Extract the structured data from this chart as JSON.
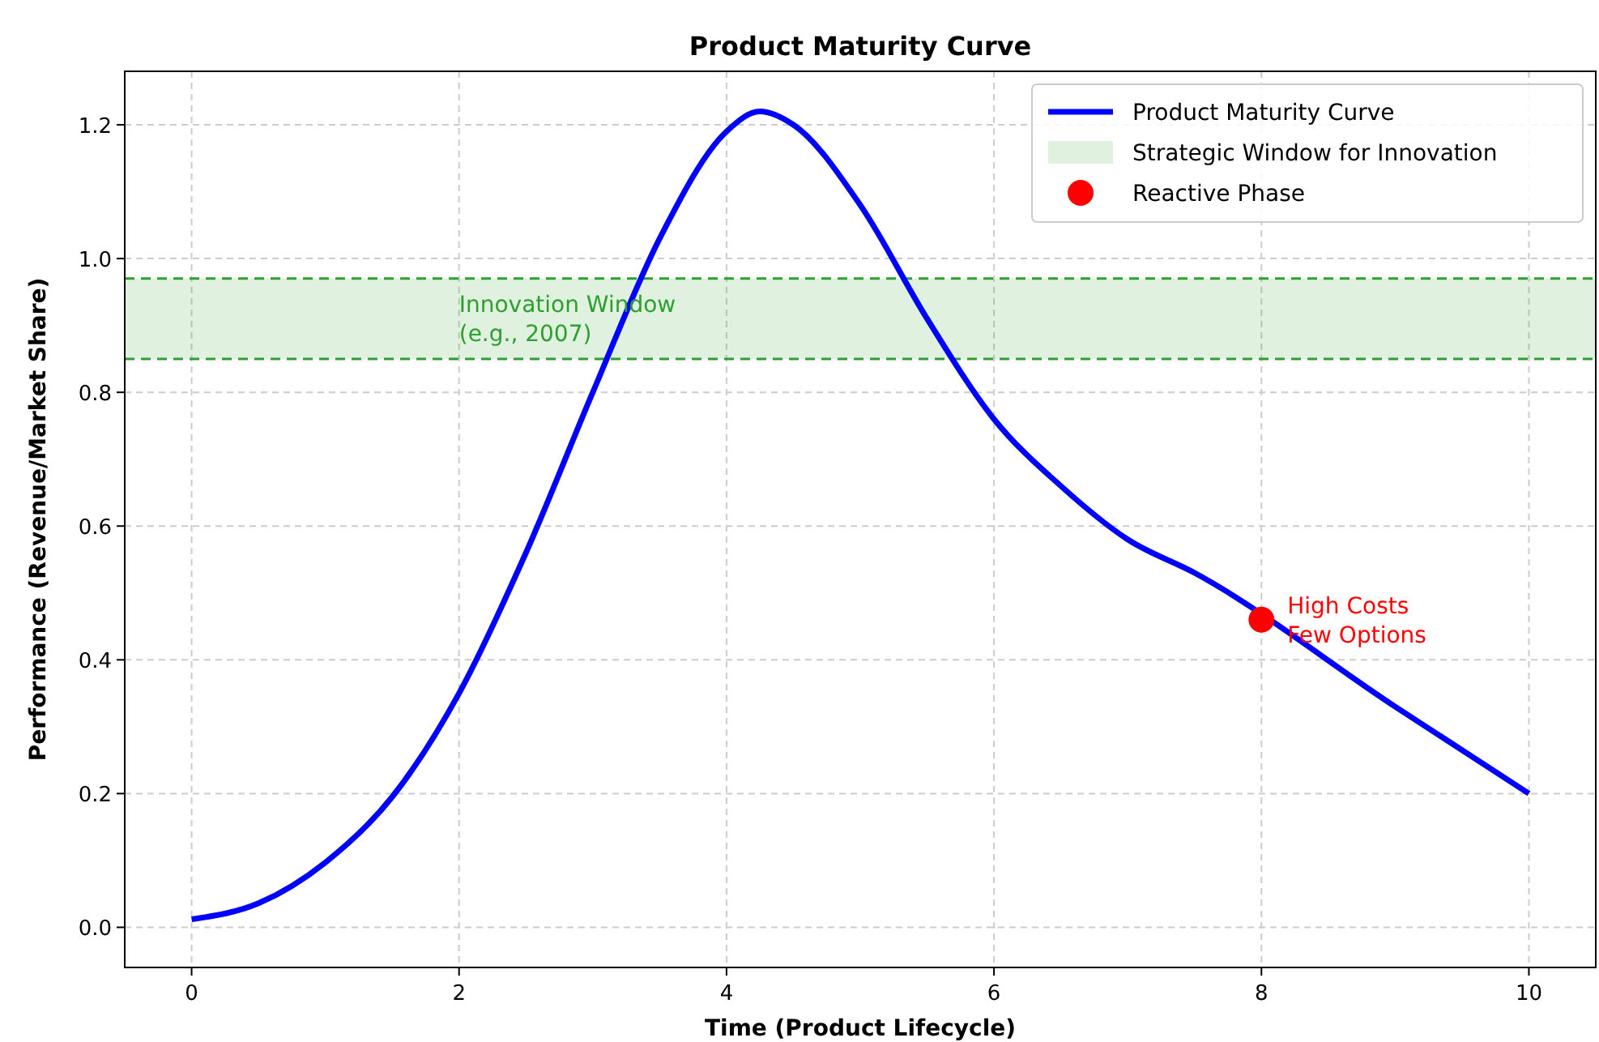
{
  "chart_data": {
    "type": "line",
    "title": "Product Maturity Curve",
    "xlabel": "Time (Product Lifecycle)",
    "ylabel": "Performance (Revenue/Market Share)",
    "xlim": [
      -0.5,
      10.5
    ],
    "ylim": [
      -0.06,
      1.28
    ],
    "xticks": [
      0,
      2,
      4,
      6,
      8,
      10
    ],
    "yticks": [
      {
        "value": 0,
        "label": "0.0"
      },
      0.2,
      0.4,
      0.6,
      0.8,
      {
        "value": 1,
        "label": "1.0"
      },
      1.2
    ],
    "series": [
      {
        "name": "Product Maturity Curve",
        "color": "#0000ff",
        "x": [
          0,
          0.5,
          1,
          1.5,
          2,
          2.5,
          3,
          3.5,
          4,
          4.25,
          4.5,
          5,
          5.5,
          6,
          6.5,
          7,
          7.5,
          8,
          9,
          10
        ],
        "values": [
          0.012,
          0.036,
          0.097,
          0.195,
          0.35,
          0.56,
          0.8,
          1.03,
          1.19,
          1.22,
          1.2,
          1.08,
          0.91,
          0.76,
          0.66,
          0.58,
          0.53,
          null,
          0.33,
          0.2
        ]
      },
      {
        "name": "Reactive Phase",
        "type": "scatter",
        "color": "#ff0000",
        "marker": "circle",
        "x": [
          8
        ],
        "values": [
          0.46
        ]
      }
    ],
    "bands": [
      {
        "axis": "y",
        "from": 0.85,
        "to": 0.97,
        "label": "Strategic Window for Innovation",
        "color": "#2ca02c"
      }
    ],
    "ref_lines": [
      {
        "axis": "y",
        "value": 0.85,
        "color": "#2ca02c",
        "line_style": "dashed"
      },
      {
        "axis": "y",
        "value": 0.97,
        "color": "#2ca02c",
        "line_style": "dashed"
      }
    ],
    "annotations": [
      "Innovation Window\n(e.g., 2007)",
      {
        "text": "High Costs\nFew Options",
        "x": 8,
        "y": 0.46
      }
    ],
    "grid": true,
    "legend": "top right",
    "line_style": "solid"
  }
}
